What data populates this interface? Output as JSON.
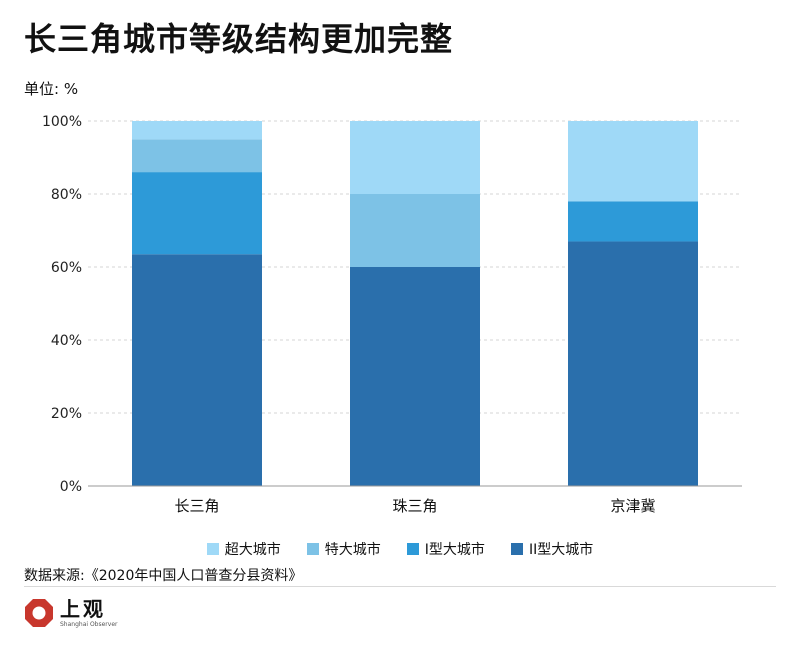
{
  "header": {
    "title": "长三角城市等级结构更加完整",
    "unit": "单位: %"
  },
  "source": "数据来源:《2020年中国人口普查分县资料》",
  "logo": {
    "name": "上观",
    "sub": "Shanghai Observer",
    "color": "#c8372d"
  },
  "chart_data": {
    "type": "bar",
    "stacked": true,
    "categories": [
      "长三角",
      "珠三角",
      "京津冀"
    ],
    "series": [
      {
        "name": "II型大城市",
        "values": [
          63.5,
          60,
          67
        ],
        "color": "#2a6fac"
      },
      {
        "name": "I型大城市",
        "values": [
          22.5,
          0,
          11
        ],
        "color": "#2d9ad8"
      },
      {
        "name": "特大城市",
        "values": [
          9,
          20,
          0
        ],
        "color": "#7dc2e6"
      },
      {
        "name": "超大城市",
        "values": [
          5,
          20,
          22
        ],
        "color": "#9fd9f7"
      }
    ],
    "legend_order": [
      3,
      2,
      1,
      0
    ],
    "ylim": [
      0,
      100
    ],
    "yticks": [
      0,
      20,
      40,
      60,
      80,
      100
    ],
    "ytick_labels": [
      "0%",
      "20%",
      "40%",
      "60%",
      "80%",
      "100%"
    ],
    "legend_position": "bottom",
    "grid": "dashed horizontal"
  }
}
